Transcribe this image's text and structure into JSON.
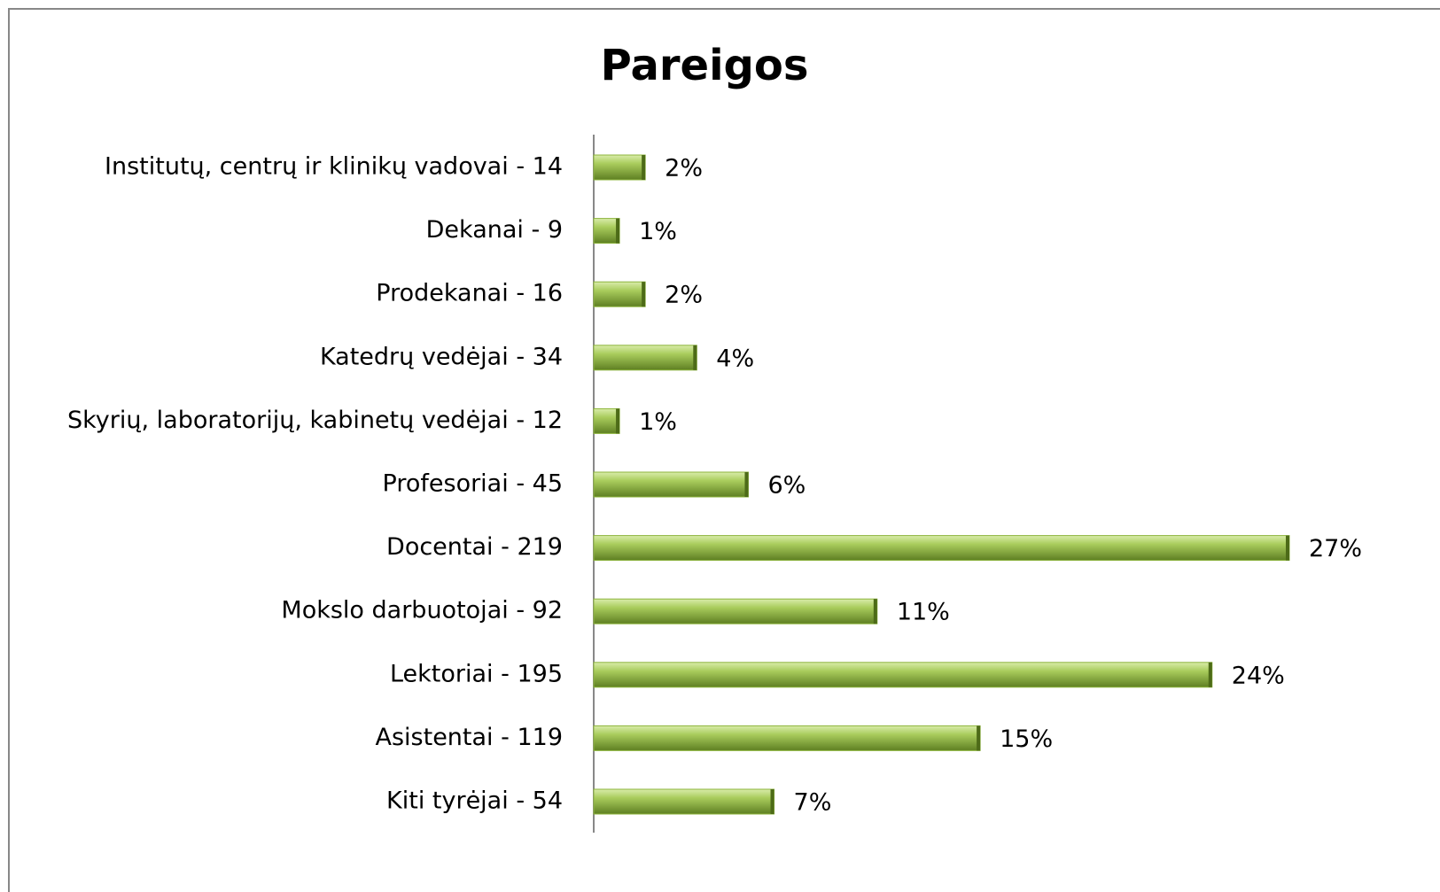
{
  "chart_data": {
    "type": "bar",
    "orientation": "horizontal",
    "title": "Pareigos",
    "categories": [
      "Institutų, centrų ir klinikų vadovai  - 14",
      "Dekanai - 9",
      "Prodekanai  - 16",
      "Katedrų vedėjai - 34",
      "Skyrių, laboratorijų, kabinetų vedėjai - 12",
      "Profesoriai - 45",
      "Docentai - 219",
      "Mokslo darbuotojai - 92",
      "Lektoriai - 195",
      "Asistentai - 119",
      "Kiti tyrėjai - 54"
    ],
    "values": [
      2,
      1,
      2,
      4,
      1,
      6,
      27,
      11,
      24,
      15,
      7
    ],
    "value_labels": [
      "2%",
      "1%",
      "2%",
      "4%",
      "1%",
      "6%",
      "27%",
      "11%",
      "24%",
      "15%",
      "7%"
    ],
    "color": "#8db43c"
  }
}
